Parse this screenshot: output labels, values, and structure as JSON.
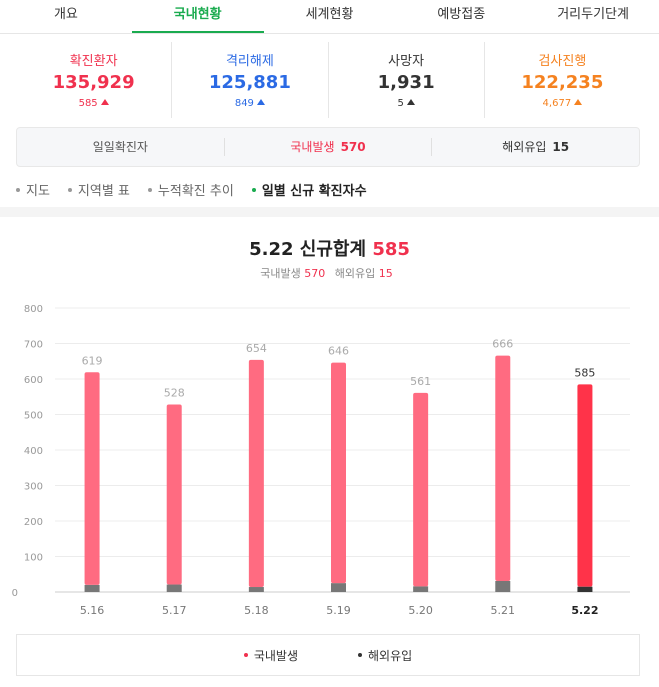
{
  "tabs": [
    {
      "label": "개요",
      "active": false
    },
    {
      "label": "국내현황",
      "active": true
    },
    {
      "label": "세계현황",
      "active": false
    },
    {
      "label": "예방접종",
      "active": false
    },
    {
      "label": "거리두기단계",
      "active": false
    }
  ],
  "stats": [
    {
      "label": "확진환자",
      "value": "135,929",
      "delta": "585",
      "color": "#f0314e"
    },
    {
      "label": "격리해제",
      "value": "125,881",
      "delta": "849",
      "color": "#2b6ae4"
    },
    {
      "label": "사망자",
      "value": "1,931",
      "delta": "5",
      "color": "#333333"
    },
    {
      "label": "검사진행",
      "value": "122,235",
      "delta": "4,677",
      "color": "#f58220"
    }
  ],
  "daily": {
    "label": "일일확진자",
    "domestic_label": "국내발생",
    "domestic_value": "570",
    "overseas_label": "해외유입",
    "overseas_value": "15"
  },
  "subnav": [
    {
      "label": "지도",
      "active": false
    },
    {
      "label": "지역별 표",
      "active": false
    },
    {
      "label": "누적확진 추이",
      "active": false
    },
    {
      "label": "일별 신규 확진자수",
      "active": true
    }
  ],
  "chart_header": {
    "title_prefix": "5.22 신규합계",
    "title_value": "585",
    "domestic_label": "국내발생",
    "domestic_value": "570",
    "overseas_label": "해외유입",
    "overseas_value": "15"
  },
  "chart_data": {
    "type": "bar",
    "stacked": true,
    "categories": [
      "5.16",
      "5.17",
      "5.18",
      "5.19",
      "5.20",
      "5.21",
      "5.22"
    ],
    "totals": [
      619,
      528,
      654,
      646,
      561,
      666,
      585
    ],
    "series": [
      {
        "name": "국내발생",
        "values": [
          599,
          507,
          640,
          621,
          545,
          635,
          570
        ],
        "color": "#ff6b81",
        "highlight_color": "#ff3349"
      },
      {
        "name": "해외유입",
        "values": [
          20,
          21,
          14,
          25,
          16,
          31,
          15
        ],
        "color": "#777777",
        "highlight_color": "#333333"
      }
    ],
    "yticks": [
      0,
      100,
      200,
      300,
      400,
      500,
      600,
      700,
      800
    ],
    "ylim": [
      0,
      800
    ],
    "highlight_category": "5.22",
    "grid": true,
    "legend_position": "bottom"
  }
}
